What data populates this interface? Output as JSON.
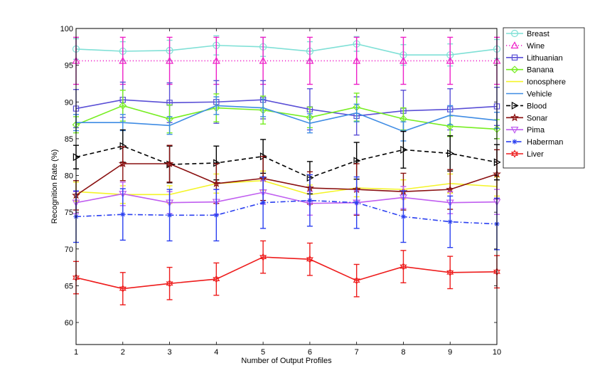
{
  "chart_data": {
    "type": "line",
    "title": "",
    "xlabel": "Number of Output Profiles",
    "ylabel": "Recognition Rate (%)",
    "xlim": [
      1,
      10
    ],
    "ylim": [
      57,
      100
    ],
    "x": [
      1,
      2,
      3,
      4,
      5,
      6,
      7,
      8,
      9,
      10
    ],
    "x_ticks": [
      "1",
      "2",
      "3",
      "4",
      "5",
      "6",
      "7",
      "8",
      "9",
      "10"
    ],
    "y_ticks": [
      60,
      65,
      70,
      75,
      80,
      85,
      90,
      95,
      100
    ],
    "y_tick_labels": [
      "60",
      "65",
      "70",
      "75",
      "80",
      "85",
      "90",
      "95",
      "100"
    ],
    "legend_position": "top-right",
    "series": [
      {
        "name": "Breast",
        "color": "#7fe0d6",
        "dash": "solid",
        "marker": "circle",
        "values": [
          97.2,
          96.9,
          97.0,
          97.7,
          97.5,
          96.9,
          97.9,
          96.4,
          96.4,
          97.2
        ],
        "errors": [
          1.4,
          1.3,
          1.4,
          1.3,
          1.3,
          1.3,
          1.0,
          1.4,
          1.5,
          1.3
        ]
      },
      {
        "name": "Wine",
        "color": "#ee20c8",
        "dash": "dotted",
        "marker": "triangle-up",
        "values": [
          95.6,
          95.6,
          95.6,
          95.6,
          95.6,
          95.6,
          95.6,
          95.6,
          95.6,
          95.6
        ],
        "errors": [
          3.2,
          3.2,
          3.2,
          3.2,
          3.2,
          3.2,
          3.2,
          3.2,
          3.2,
          3.2
        ]
      },
      {
        "name": "Lithuanian",
        "color": "#5a4fd6",
        "dash": "solid",
        "marker": "square",
        "values": [
          89.1,
          90.3,
          89.9,
          90.0,
          90.3,
          89.0,
          88.1,
          88.8,
          89.0,
          89.4
        ],
        "errors": [
          2.6,
          2.4,
          2.7,
          2.9,
          2.6,
          2.8,
          2.6,
          2.8,
          2.8,
          2.6
        ]
      },
      {
        "name": "Banana",
        "color": "#77ee22",
        "dash": "solid",
        "marker": "diamond",
        "values": [
          86.9,
          89.5,
          87.7,
          89.2,
          88.9,
          87.9,
          89.3,
          87.7,
          86.7,
          86.3
        ],
        "errors": [
          1.1,
          2.1,
          1.9,
          1.9,
          1.9,
          1.4,
          1.9,
          1.5,
          1.4,
          1.3
        ]
      },
      {
        "name": "Ionosphere",
        "color": "#f4f428",
        "dash": "solid",
        "marker": "none",
        "values": [
          77.8,
          77.4,
          77.4,
          78.9,
          79.3,
          77.4,
          78.3,
          78.1,
          78.9,
          78.5
        ],
        "errors": [
          1.3,
          1.2,
          1.2,
          1.3,
          1.3,
          1.3,
          1.2,
          1.3,
          1.3,
          1.3
        ]
      },
      {
        "name": "Vehicle",
        "color": "#3f8ce4",
        "dash": "solid",
        "marker": "none",
        "values": [
          87.2,
          87.2,
          86.8,
          89.5,
          89.2,
          87.1,
          88.5,
          86.0,
          88.2,
          87.5
        ],
        "errors": [
          1.1,
          1.1,
          1.2,
          1.2,
          1.2,
          1.3,
          1.2,
          1.3,
          1.3,
          1.1
        ]
      },
      {
        "name": "Blood",
        "color": "#000000",
        "dash": "dashed",
        "marker": "triangle-right",
        "values": [
          82.5,
          84.0,
          81.5,
          81.7,
          82.6,
          79.7,
          82.0,
          83.5,
          83.0,
          81.8
        ],
        "errors": [
          1.6,
          2.2,
          2.5,
          2.3,
          2.3,
          2.2,
          2.5,
          2.5,
          2.4,
          2.4
        ]
      },
      {
        "name": "Sonar",
        "color": "#8a1010",
        "dash": "solid",
        "marker": "star",
        "values": [
          77.3,
          81.6,
          81.6,
          78.9,
          79.6,
          78.3,
          78.1,
          77.8,
          78.1,
          80.2
        ],
        "errors": [
          2.0,
          2.3,
          2.5,
          2.7,
          3.0,
          2.2,
          3.5,
          2.5,
          2.7,
          3.3
        ]
      },
      {
        "name": "Pima",
        "color": "#c05ef0",
        "dash": "solid",
        "marker": "triangle-down",
        "values": [
          76.3,
          77.5,
          76.3,
          76.4,
          77.7,
          76.2,
          76.3,
          77.0,
          76.3,
          76.4
        ],
        "errors": [
          1.5,
          1.6,
          1.5,
          1.7,
          1.6,
          1.6,
          1.6,
          1.5,
          1.5,
          1.7
        ]
      },
      {
        "name": "Haberman",
        "color": "#2a3ff0",
        "dash": "dashdot",
        "marker": "asterisk",
        "values": [
          74.4,
          74.7,
          74.6,
          74.6,
          76.3,
          76.6,
          76.3,
          74.4,
          73.7,
          73.4
        ],
        "errors": [
          3.5,
          3.5,
          3.5,
          3.5,
          3.5,
          3.5,
          3.5,
          3.5,
          3.5,
          3.5
        ]
      },
      {
        "name": "Liver",
        "color": "#ee1c1c",
        "dash": "solid",
        "marker": "hexagram",
        "values": [
          66.1,
          64.6,
          65.3,
          65.9,
          68.9,
          68.6,
          65.7,
          67.6,
          66.8,
          66.9
        ],
        "errors": [
          2.2,
          2.2,
          2.2,
          2.2,
          2.2,
          2.2,
          2.2,
          2.2,
          2.2,
          2.2
        ]
      }
    ]
  }
}
